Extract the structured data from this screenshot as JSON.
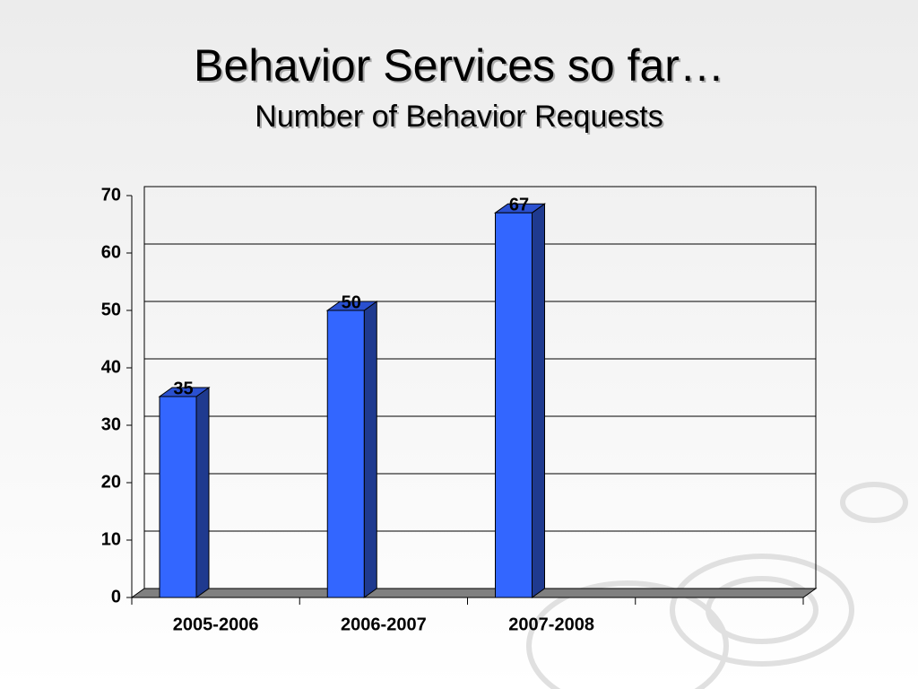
{
  "chart_data": {
    "type": "bar3d",
    "title": "Behavior Services so far…",
    "subtitle": "Number of Behavior Requests",
    "categories": [
      "2005-2006",
      "2006-2007",
      "2007-2008",
      null
    ],
    "values": [
      35,
      50,
      67,
      null
    ],
    "color": "#3366ff",
    "ylim": [
      0,
      70
    ],
    "yticks": [
      0,
      10,
      20,
      30,
      40,
      50,
      60,
      70
    ],
    "grid": true
  }
}
